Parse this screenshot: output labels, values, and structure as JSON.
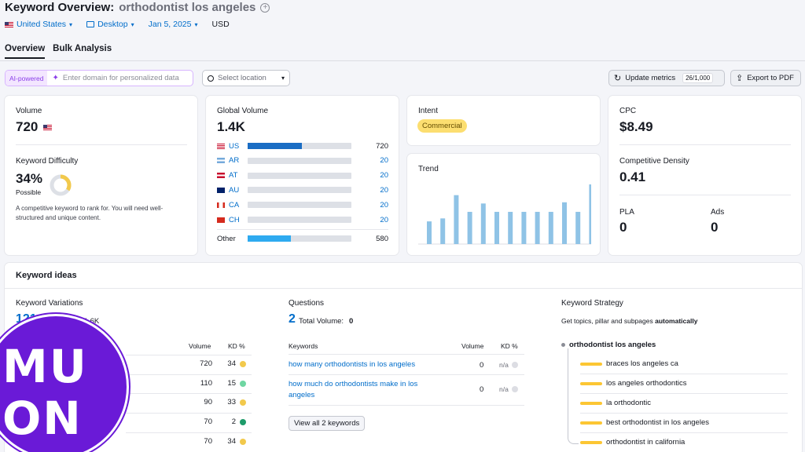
{
  "header": {
    "title": "Keyword Overview:",
    "keyword": "orthodontist los angeles",
    "filters": {
      "country": "United States",
      "device": "Desktop",
      "date": "Jan 5, 2025",
      "currency": "USD"
    },
    "tabs": [
      "Overview",
      "Bulk Analysis"
    ]
  },
  "toolbar": {
    "ai_tag": "AI-powered",
    "ai_placeholder": "Enter domain for personalized data",
    "location": "Select location",
    "update": "Update metrics",
    "update_count": "26/1,000",
    "export": "Export to PDF"
  },
  "volume": {
    "label": "Volume",
    "value": "720",
    "kd_label": "Keyword Difficulty",
    "kd_value": "34%",
    "kd_text": "Possible",
    "kd_percent": 34,
    "description": "A competitive keyword to rank for. You will need well-structured and unique content."
  },
  "global_volume": {
    "label": "Global Volume",
    "value": "1.4K",
    "rows": [
      {
        "code": "US",
        "value": "720",
        "fraction": 0.52
      },
      {
        "code": "AR",
        "value": "20",
        "fraction": 0.0
      },
      {
        "code": "AT",
        "value": "20",
        "fraction": 0.0
      },
      {
        "code": "AU",
        "value": "20",
        "fraction": 0.0
      },
      {
        "code": "CA",
        "value": "20",
        "fraction": 0.0
      },
      {
        "code": "CH",
        "value": "20",
        "fraction": 0.0
      }
    ],
    "other": {
      "label": "Other",
      "value": "580",
      "fraction": 0.42
    }
  },
  "intent": {
    "label": "Intent",
    "value": "Commercial"
  },
  "trend": {
    "label": "Trend",
    "values": [
      0.38,
      0.43,
      0.82,
      0.54,
      0.68,
      0.54,
      0.54,
      0.54,
      0.54,
      0.54,
      0.7,
      0.54,
      1.0
    ]
  },
  "cpc": {
    "label": "CPC",
    "value": "$8.49",
    "density_label": "Competitive Density",
    "density_value": "0.41",
    "pla_label": "PLA",
    "pla_value": "0",
    "ads_label": "Ads",
    "ads_value": "0"
  },
  "ideas": {
    "title": "Keyword ideas",
    "variations": {
      "label": "Keyword Variations",
      "count": "121",
      "total": "Total Volume: 1.6K",
      "col_volume": "Volume",
      "col_kd": "KD %",
      "rows": [
        {
          "volume": "720",
          "kd": "34",
          "color": "#f2c94c"
        },
        {
          "volume": "110",
          "kd": "15",
          "color": "#6fd6a2"
        },
        {
          "volume": "90",
          "kd": "33",
          "color": "#f2c94c"
        },
        {
          "volume": "70",
          "kd": "2",
          "color": "#1e9b6a"
        },
        {
          "volume": "70",
          "kd": "34",
          "color": "#f2c94c"
        }
      ]
    },
    "questions": {
      "label": "Questions",
      "count": "2",
      "total_label": "Total Volume:",
      "total_value": "0",
      "col_kw": "Keywords",
      "col_volume": "Volume",
      "col_kd": "KD %",
      "rows": [
        {
          "kw": "how many orthodontists in los angeles",
          "volume": "0",
          "kd": "n/a"
        },
        {
          "kw": "how much do orthodontists make in los angeles",
          "volume": "0",
          "kd": "n/a"
        }
      ],
      "view_all": "View all 2 keywords"
    },
    "strategy": {
      "label": "Keyword Strategy",
      "desc": "Get topics, pillar and subpages",
      "desc_bold": "automatically",
      "root": "orthodontist los angeles",
      "items": [
        "braces los angeles ca",
        "los angeles orthodontics",
        "la orthodontic",
        "best orthodontist in los angeles",
        "orthodontist in california"
      ]
    }
  },
  "logo": {
    "line1": "MU",
    "line2": "ON"
  }
}
